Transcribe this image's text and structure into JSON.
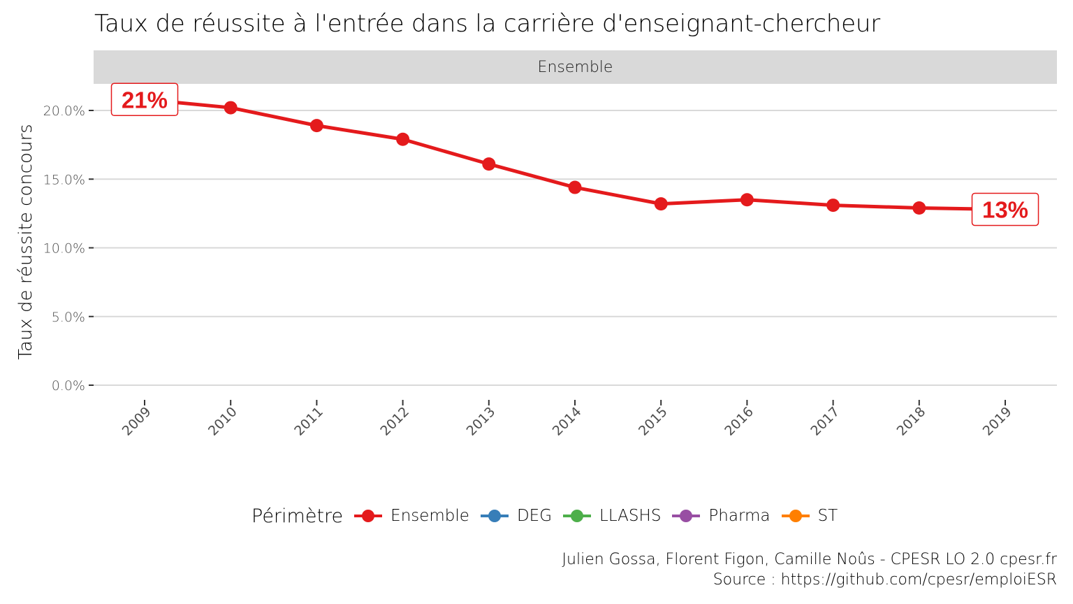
{
  "chart_data": {
    "type": "line",
    "title": "Taux de réussite à l'entrée dans la carrière d'enseignant-chercheur",
    "facet": "Ensemble",
    "xlabel": "",
    "ylabel": "Taux de réussite concours",
    "x": [
      "2009",
      "2010",
      "2011",
      "2012",
      "2013",
      "2014",
      "2015",
      "2016",
      "2017",
      "2018",
      "2019"
    ],
    "series": [
      {
        "name": "Ensemble",
        "color": "#e41a1c",
        "values": [
          20.8,
          20.2,
          18.9,
          17.9,
          16.1,
          14.4,
          13.2,
          13.5,
          13.1,
          12.9,
          12.8
        ]
      }
    ],
    "ylim": [
      0,
      22
    ],
    "yticks": [
      0,
      5,
      10,
      15,
      20
    ],
    "ytick_labels": [
      "0.0%",
      "5.0%",
      "10.0%",
      "15.0%",
      "20.0%"
    ],
    "annotations": [
      {
        "x": "2009",
        "text": "21%"
      },
      {
        "x": "2019",
        "text": "13%"
      }
    ],
    "grid": true,
    "legend_position": "bottom"
  },
  "legend": {
    "title": "Périmètre",
    "items": [
      {
        "label": "Ensemble",
        "color": "#e41a1c"
      },
      {
        "label": "DEG",
        "color": "#377eb8"
      },
      {
        "label": "LLASHS",
        "color": "#4daf4a"
      },
      {
        "label": "Pharma",
        "color": "#984ea3"
      },
      {
        "label": "ST",
        "color": "#ff7f00"
      }
    ]
  },
  "caption": {
    "line1": "Julien Gossa, Florent Figon, Camille Noûs - CPESR LO 2.0 cpesr.fr",
    "line2": "Source : https://github.com/cpesr/emploiESR"
  }
}
